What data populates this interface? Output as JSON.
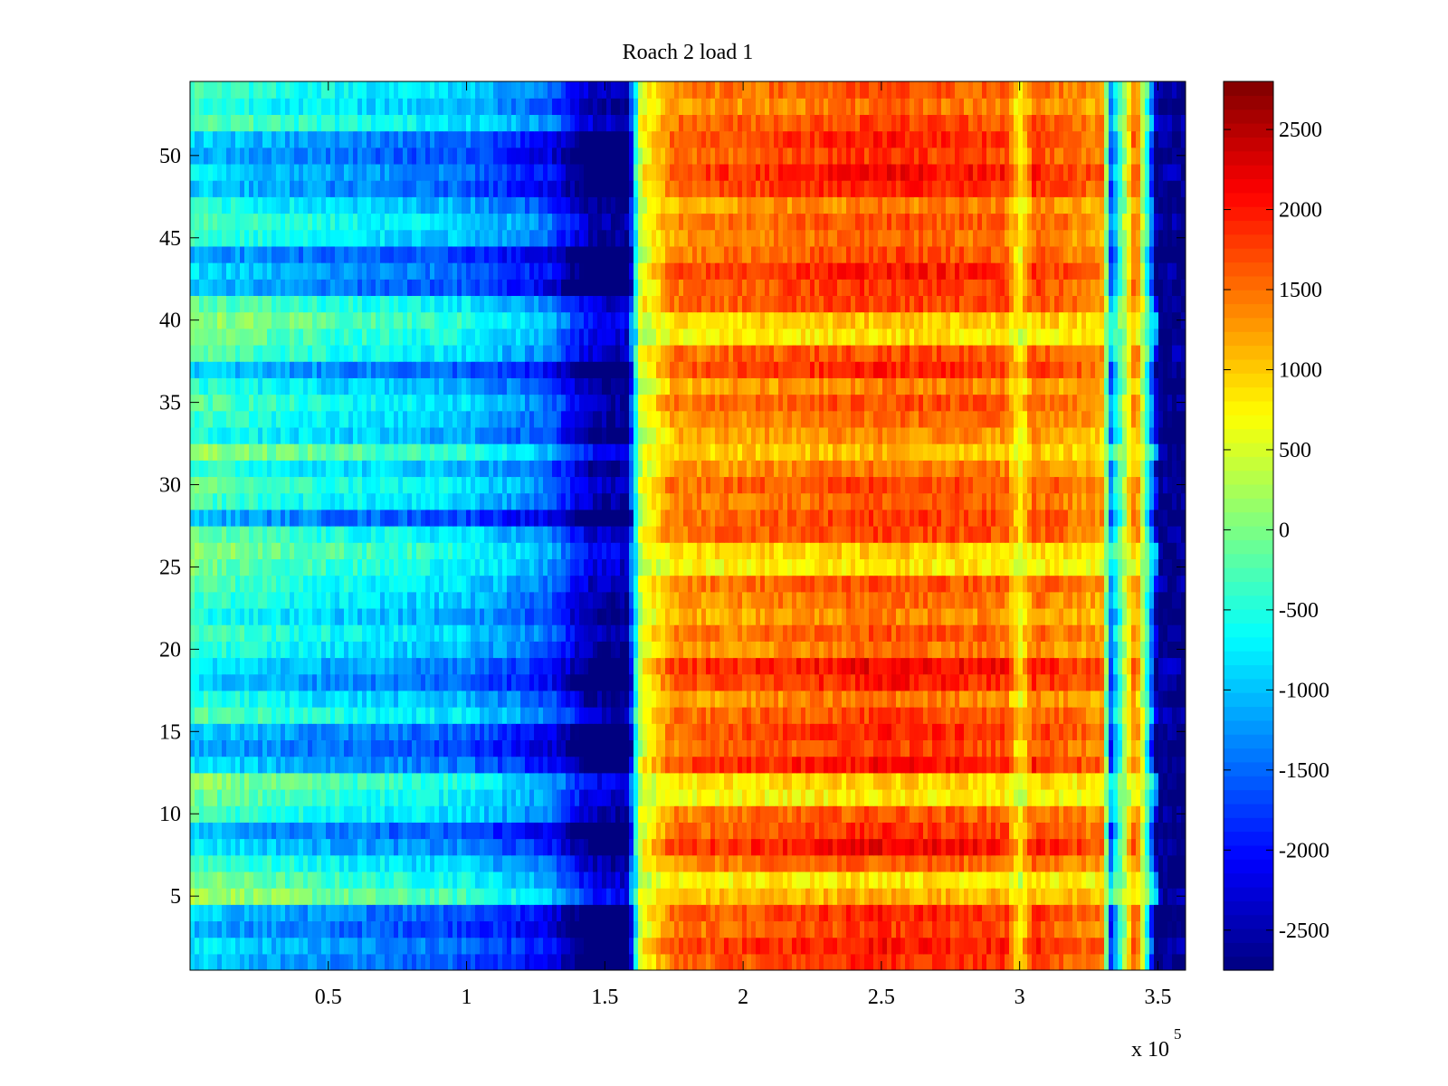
{
  "chart_data": {
    "type": "heatmap",
    "title": "Roach 2 load 1",
    "xlabel": "",
    "ylabel": "",
    "x_multiplier_label": {
      "base": "x 10",
      "exponent": "5"
    },
    "xlim": [
      0,
      3.6
    ],
    "ylim": [
      0.5,
      54.5
    ],
    "xticks": [
      {
        "value": 0.5,
        "label": "0.5"
      },
      {
        "value": 1,
        "label": "1"
      },
      {
        "value": 1.5,
        "label": "1.5"
      },
      {
        "value": 2,
        "label": "2"
      },
      {
        "value": 2.5,
        "label": "2.5"
      },
      {
        "value": 3,
        "label": "3"
      },
      {
        "value": 3.5,
        "label": "3.5"
      }
    ],
    "yticks": [
      {
        "value": 5,
        "label": "5"
      },
      {
        "value": 10,
        "label": "10"
      },
      {
        "value": 15,
        "label": "15"
      },
      {
        "value": 20,
        "label": "20"
      },
      {
        "value": 25,
        "label": "25"
      },
      {
        "value": 30,
        "label": "30"
      },
      {
        "value": 35,
        "label": "35"
      },
      {
        "value": 40,
        "label": "40"
      },
      {
        "value": 45,
        "label": "45"
      },
      {
        "value": 50,
        "label": "50"
      }
    ],
    "rows": 54,
    "colormap": "jet",
    "clim": [
      -2750,
      2800
    ],
    "colorbar": {
      "ticks": [
        {
          "value": 2500,
          "label": "2500"
        },
        {
          "value": 2000,
          "label": "2000"
        },
        {
          "value": 1500,
          "label": "1500"
        },
        {
          "value": 1000,
          "label": "1000"
        },
        {
          "value": 500,
          "label": "500"
        },
        {
          "value": 0,
          "label": "0"
        },
        {
          "value": -500,
          "label": "-500"
        },
        {
          "value": -1000,
          "label": "-1000"
        },
        {
          "value": -1500,
          "label": "-1500"
        },
        {
          "value": -2000,
          "label": "-2000"
        },
        {
          "value": -2500,
          "label": "-2500"
        }
      ]
    },
    "x_profile": [
      {
        "x": 0.0,
        "value": -300
      },
      {
        "x": 0.5,
        "value": -700
      },
      {
        "x": 1.0,
        "value": -950
      },
      {
        "x": 1.3,
        "value": -1500
      },
      {
        "x": 1.45,
        "value": -2500
      },
      {
        "x": 1.58,
        "value": -2650
      },
      {
        "x": 1.63,
        "value": 500
      },
      {
        "x": 1.75,
        "value": 1300
      },
      {
        "x": 2.5,
        "value": 1600
      },
      {
        "x": 2.95,
        "value": 1500
      },
      {
        "x": 3.0,
        "value": 700
      },
      {
        "x": 3.05,
        "value": 1500
      },
      {
        "x": 3.3,
        "value": 1200
      },
      {
        "x": 3.33,
        "value": -1300
      },
      {
        "x": 3.42,
        "value": 1500
      },
      {
        "x": 3.47,
        "value": -800
      },
      {
        "x": 3.5,
        "value": -2700
      },
      {
        "x": 3.6,
        "value": -2700
      }
    ],
    "strong_rows": [
      1,
      2,
      3,
      4,
      8,
      9,
      13,
      14,
      15,
      18,
      19,
      28,
      37,
      42,
      43,
      44,
      48,
      49,
      50,
      51
    ],
    "weak_rows": [
      5,
      6,
      11,
      12,
      25,
      26,
      32,
      39,
      40
    ]
  }
}
